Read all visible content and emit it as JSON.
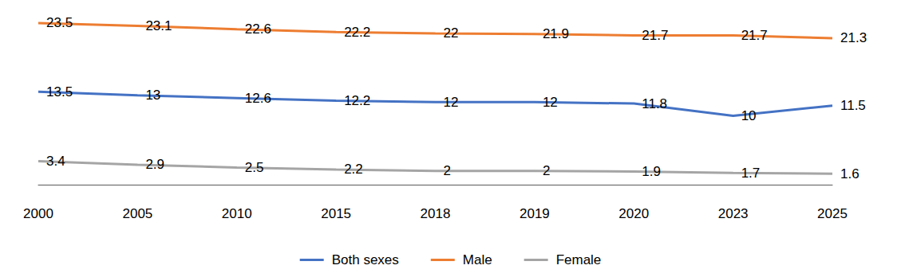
{
  "chart_data": {
    "type": "line",
    "categories": [
      "2000",
      "2005",
      "2010",
      "2015",
      "2018",
      "2019",
      "2020",
      "2023",
      "2025"
    ],
    "series": [
      {
        "name": "Both sexes",
        "color": "#4472c4",
        "values": [
          13.5,
          13,
          12.6,
          12.2,
          12,
          12,
          11.8,
          10,
          11.5
        ]
      },
      {
        "name": "Male",
        "color": "#ed7d31",
        "values": [
          23.5,
          23.1,
          22.6,
          22.2,
          22,
          21.9,
          21.7,
          21.7,
          21.3
        ]
      },
      {
        "name": "Female",
        "color": "#a5a5a5",
        "values": [
          3.4,
          2.9,
          2.5,
          2.2,
          2,
          2,
          1.9,
          1.7,
          1.6
        ]
      }
    ],
    "ylim": [
      0,
      25
    ],
    "yticks": [
      0,
      5,
      10,
      15,
      20,
      25
    ],
    "grid": false,
    "legend": "bottom",
    "data_labels": true,
    "tick_labels": "x",
    "marker": "none"
  }
}
